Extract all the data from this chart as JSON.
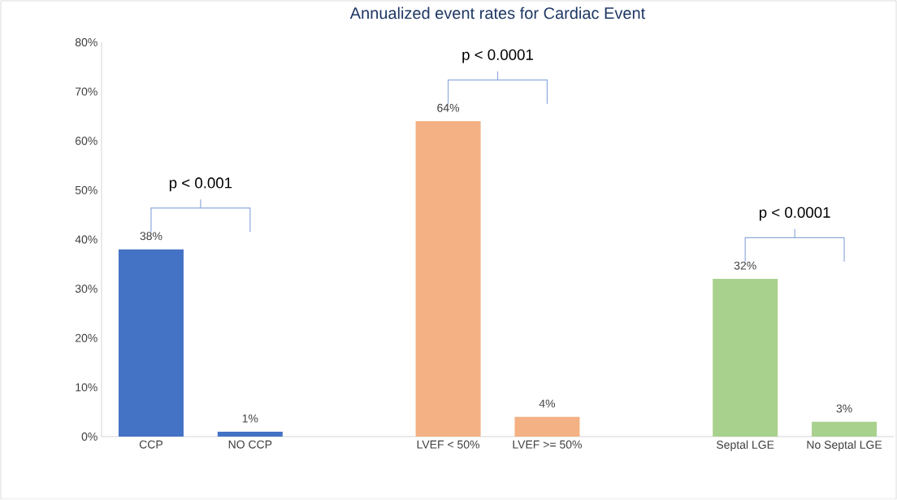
{
  "chart_data": {
    "type": "bar",
    "title": "Annualized event rates for Cardiac Event",
    "categories": [
      "CCP",
      "NO CCP",
      null,
      "LVEF < 50%",
      "LVEF >= 50%",
      null,
      "Septal LGE",
      "No Septal LGE"
    ],
    "values": [
      38,
      1,
      null,
      64,
      4,
      null,
      32,
      3
    ],
    "colors": [
      "#4472c4",
      "#4472c4",
      null,
      "#f4b183",
      "#f4b183",
      null,
      "#a9d18e",
      "#a9d18e"
    ],
    "value_labels": [
      "38%",
      "1%",
      null,
      "64%",
      "4%",
      null,
      "32%",
      "3%"
    ],
    "ylim": [
      0,
      80
    ],
    "yticks": [
      {
        "value": 0,
        "label": "0%"
      },
      {
        "value": 10,
        "label": "10%"
      },
      {
        "value": 20,
        "label": "20%"
      },
      {
        "value": 30,
        "label": "30%"
      },
      {
        "value": 40,
        "label": "40%"
      },
      {
        "value": 50,
        "label": "50%"
      },
      {
        "value": 60,
        "label": "60%"
      },
      {
        "value": 70,
        "label": "70%"
      },
      {
        "value": 80,
        "label": "80%"
      }
    ],
    "annotations": [
      "p < 0.001",
      "p < 0.0001",
      "p < 0.0001"
    ]
  }
}
